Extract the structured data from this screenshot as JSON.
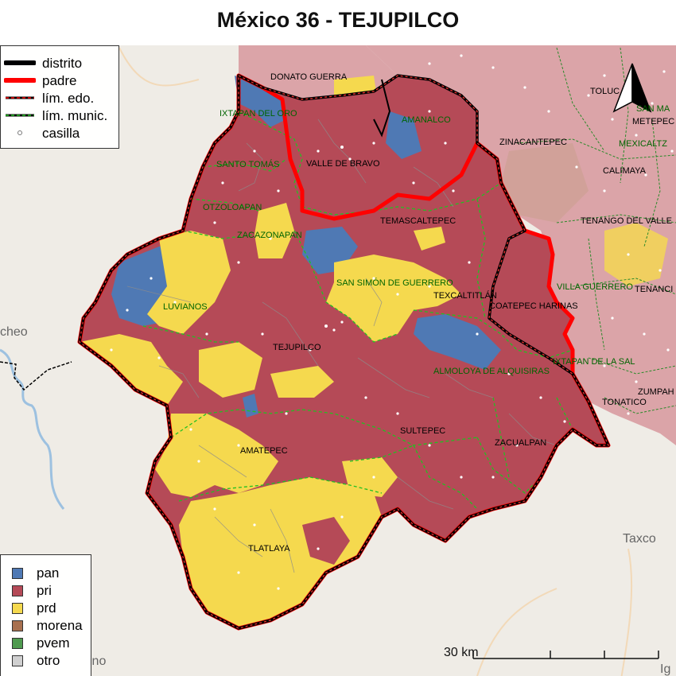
{
  "title": "México 36 - TEJUPILCO",
  "colors": {
    "pan": "#4f79b4",
    "pri": "#b54a57",
    "prd": "#f5d94e",
    "morena": "#a8704f",
    "pvem": "#4f9a4f",
    "otro": "#d0d0d0",
    "basemap": "#efece6",
    "neighbor": "#dba4a8",
    "district_border": "#000000",
    "parent_border": "#ff0000",
    "muni_border": "#22c022"
  },
  "legend_lines": [
    {
      "key": "distrito",
      "label": "distrito"
    },
    {
      "key": "padre",
      "label": "padre"
    },
    {
      "key": "lim_edo",
      "label": "lím. edo."
    },
    {
      "key": "lim_munic",
      "label": "lím. munic."
    },
    {
      "key": "casilla",
      "label": "casilla"
    }
  ],
  "legend_parties": [
    {
      "key": "pan",
      "label": "pan",
      "color": "#4f79b4"
    },
    {
      "key": "pri",
      "label": "pri",
      "color": "#b54a57"
    },
    {
      "key": "prd",
      "label": "prd",
      "color": "#f5d94e"
    },
    {
      "key": "morena",
      "label": "morena",
      "color": "#a8704f"
    },
    {
      "key": "pvem",
      "label": "pvem",
      "color": "#4f9a4f"
    },
    {
      "key": "otro",
      "label": "otro",
      "color": "#d0d0d0"
    }
  ],
  "municipalities": [
    {
      "key": "donato_guerra",
      "label": "DONATO GUERRA"
    },
    {
      "key": "ixtapan_del_oro",
      "label": "IXTAPAN DEL ORO"
    },
    {
      "key": "amanalco",
      "label": "AMANALCO"
    },
    {
      "key": "zinacantepec",
      "label": "ZINACANTEPEC"
    },
    {
      "key": "santo_tomas",
      "label": "SANTO TOMÁS"
    },
    {
      "key": "valle_de_bravo",
      "label": "VALLE DE BRAVO"
    },
    {
      "key": "otzoloapan",
      "label": "OTZOLOAPAN"
    },
    {
      "key": "temascaltepec",
      "label": "TEMASCALTEPEC"
    },
    {
      "key": "zacazonapan",
      "label": "ZACAZONAPAN"
    },
    {
      "key": "san_simon",
      "label": "SAN SIMÓN DE GUERRERO"
    },
    {
      "key": "texcaltitlan",
      "label": "TEXCALTITLÁN"
    },
    {
      "key": "coatepec",
      "label": "COATEPEC HARINAS"
    },
    {
      "key": "luvianos",
      "label": "LUVIANOS"
    },
    {
      "key": "tejupilco",
      "label": "TEJUPILCO"
    },
    {
      "key": "almoloya",
      "label": "ALMOLOYA DE ALQUISIRAS"
    },
    {
      "key": "sultepec",
      "label": "SULTEPEC"
    },
    {
      "key": "zacualpan",
      "label": "ZACUALPAN"
    },
    {
      "key": "amatepec",
      "label": "AMATEPEC"
    },
    {
      "key": "tlatlaya",
      "label": "TLATLAYA"
    },
    {
      "key": "villa_guerrero",
      "label": "VILLA GUERRERO"
    },
    {
      "key": "ixtapan_de_la_sal",
      "label": "IXTAPAN DE LA SAL"
    },
    {
      "key": "tonatico",
      "label": "TONATICO"
    },
    {
      "key": "zumpahuacan",
      "label": "ZUMPAH"
    },
    {
      "key": "tenango_del_valle",
      "label": "TENANGO DEL VALLE"
    },
    {
      "key": "toluca",
      "label": "TOLUC"
    },
    {
      "key": "metepec",
      "label": "METEPEC"
    },
    {
      "key": "calimaya",
      "label": "CALIMAYA"
    },
    {
      "key": "san_mateo",
      "label": "SAN MA"
    },
    {
      "key": "mexicaltzingo",
      "label": "MEXICALTZ"
    },
    {
      "key": "tenancingo",
      "label": "TENANCI"
    }
  ],
  "basemap_labels": [
    {
      "key": "taxco",
      "label": "Taxco"
    },
    {
      "key": "cheo",
      "label": "cheo"
    },
    {
      "key": "ino",
      "label": "ino"
    },
    {
      "key": "ig",
      "label": "Ig"
    }
  ],
  "scale_label": "30 km",
  "north_arrow": "north-arrow-icon"
}
